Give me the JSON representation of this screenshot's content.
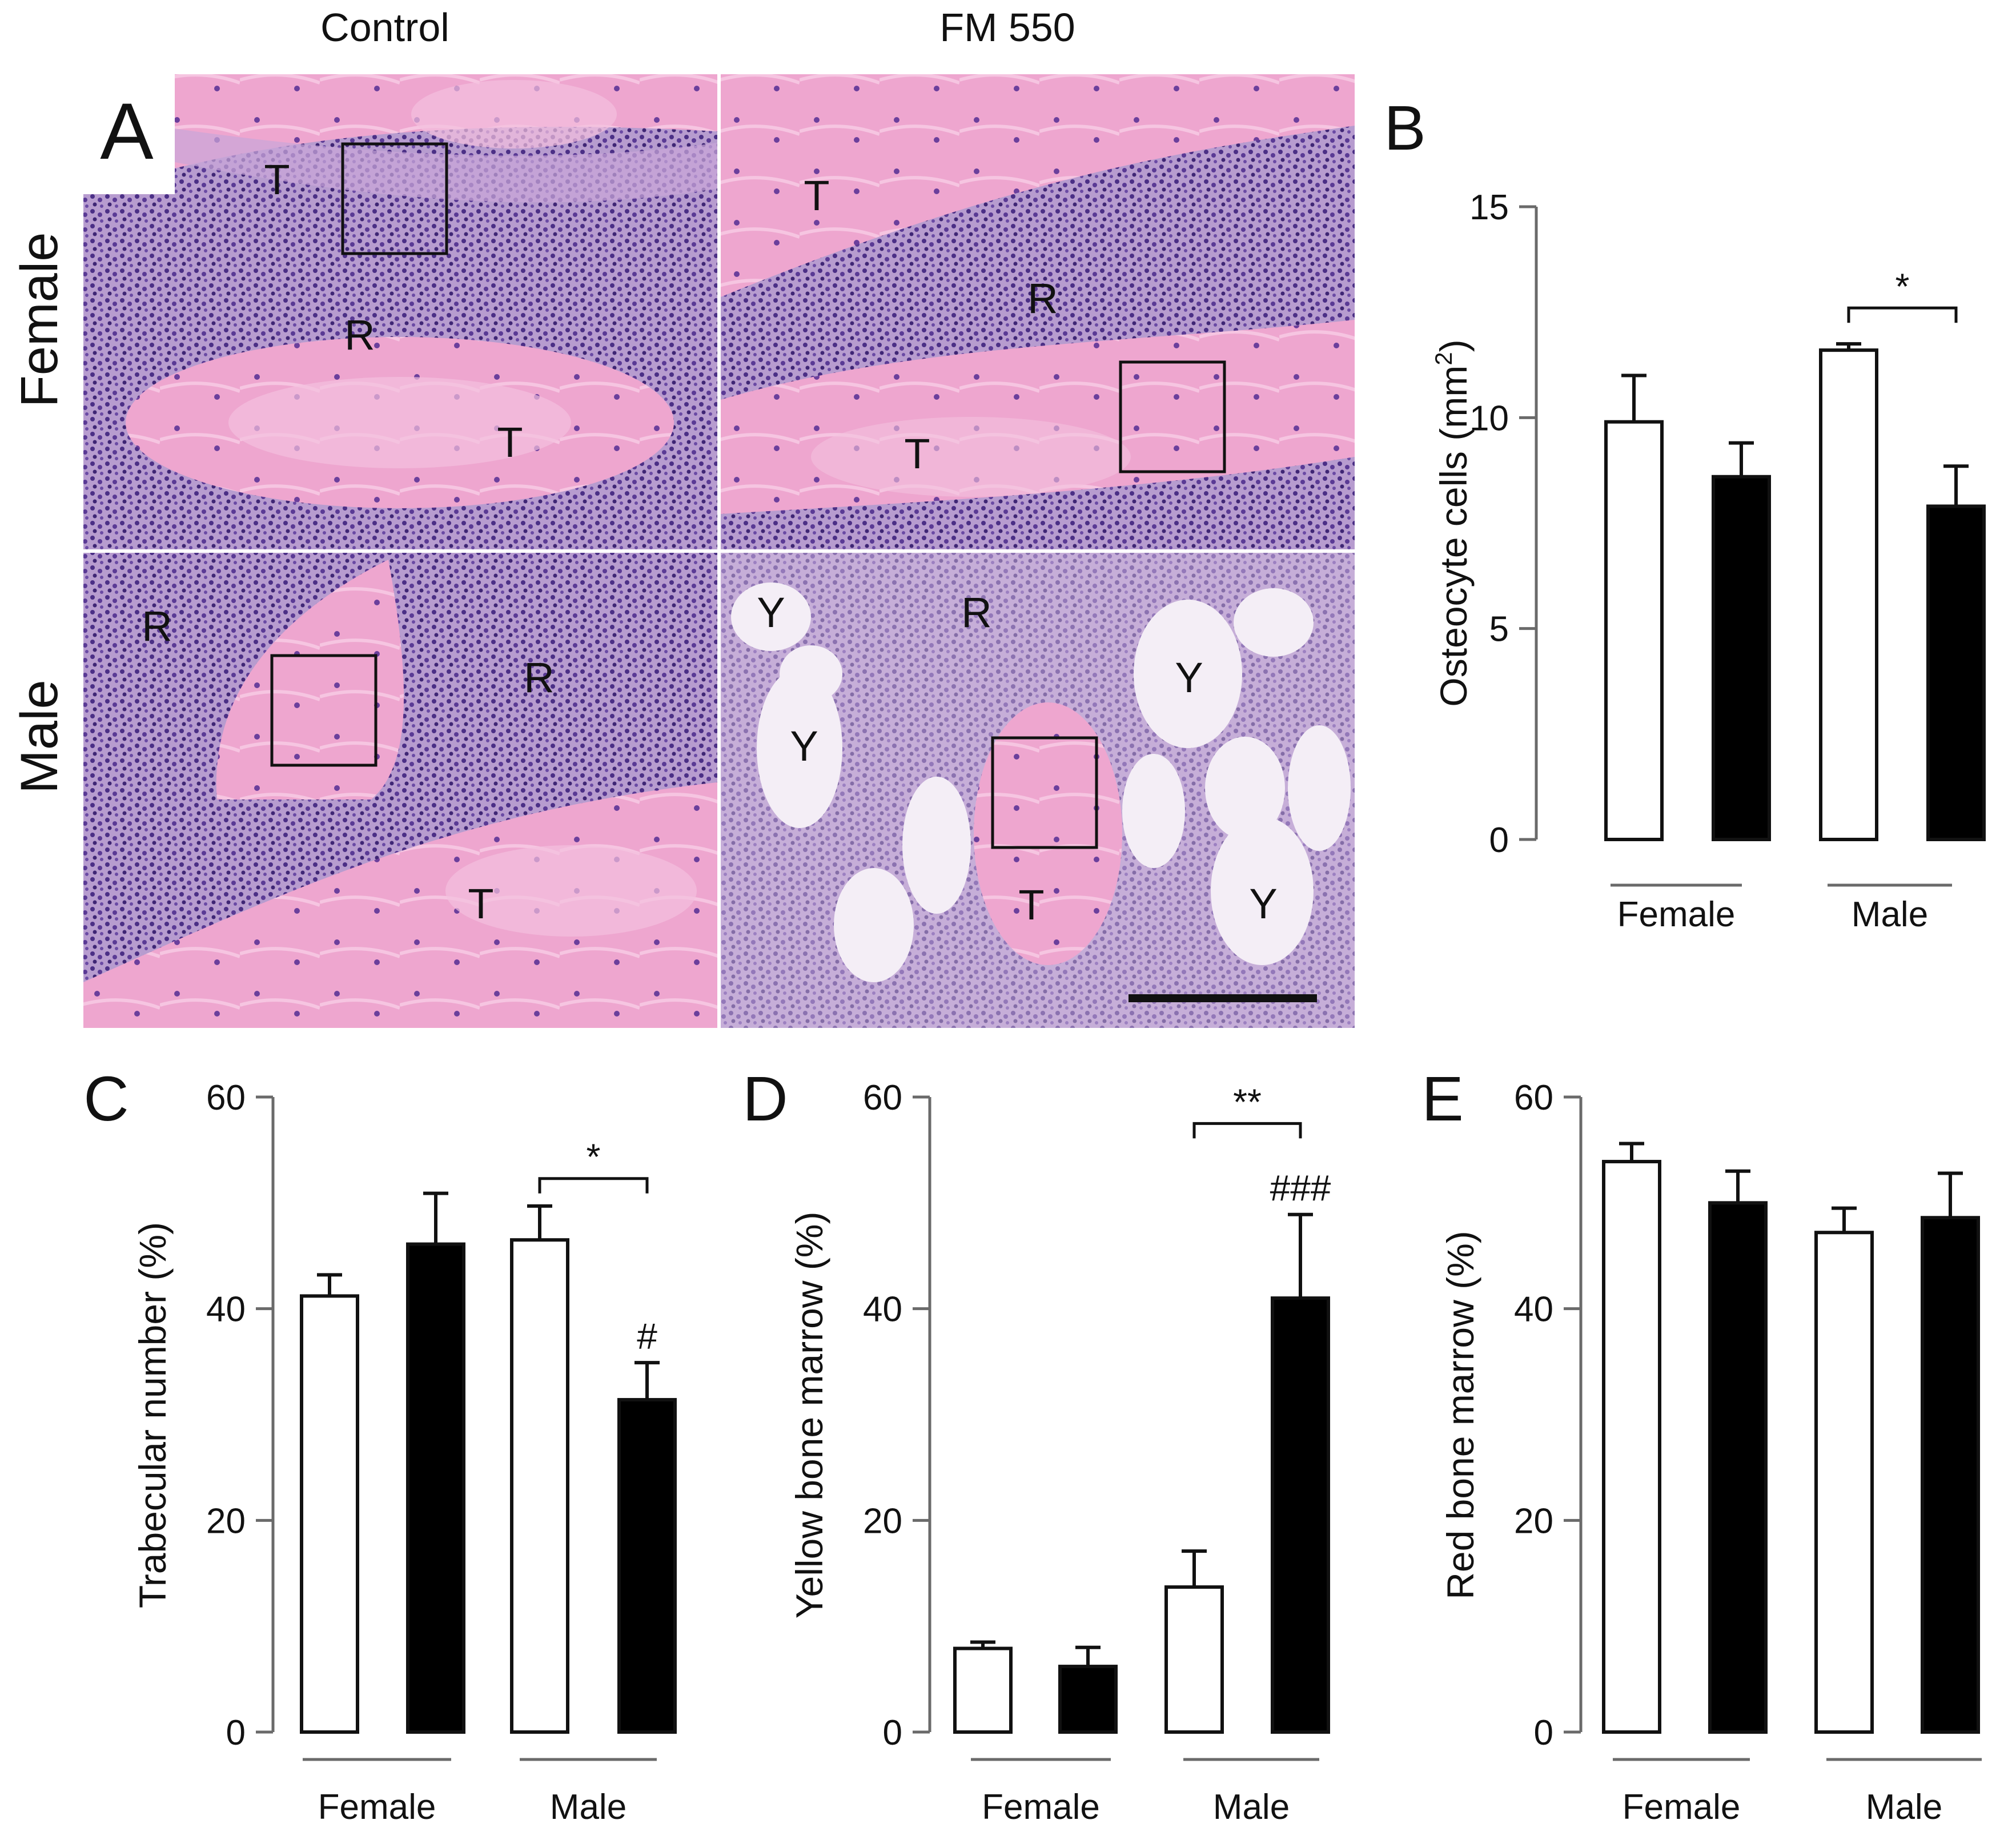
{
  "micrograph": {
    "panel_letter": "A",
    "column_labels": [
      "Control",
      "FM 550"
    ],
    "row_labels": [
      "Female",
      "Male"
    ],
    "tissue_marks": {
      "female_control": [
        "T",
        "R",
        "T"
      ],
      "female_fm550": [
        "T",
        "R",
        "T"
      ],
      "male_control": [
        "R",
        "R",
        "T"
      ],
      "male_fm550": [
        "Y",
        "R",
        "Y",
        "Y",
        "T",
        "Y"
      ]
    },
    "colors": {
      "bone_pink": "#e8a0c8",
      "marrow_purple": "#7a5aa8",
      "fat_white": "#f4eef6"
    }
  },
  "chart_data": [
    {
      "panel": "B",
      "type": "bar",
      "ylabel": "Osteocyte cells (mm",
      "ylabel_sup": "2",
      "ylabel_close": ")",
      "ylim": [
        0,
        15
      ],
      "yticks": [
        "0",
        "5",
        "10",
        "15"
      ],
      "groups": [
        "Female",
        "Male"
      ],
      "series": [
        {
          "values": [
            9.9,
            11.6
          ],
          "errors": [
            1.1,
            0.15
          ],
          "fill": "#ffffff"
        },
        {
          "values": [
            8.6,
            7.9
          ],
          "errors": [
            0.8,
            0.95
          ],
          "fill": "#000000"
        }
      ],
      "brackets": [
        {
          "group": 1,
          "label": "*",
          "y": 12.6
        }
      ],
      "bar_marks": []
    },
    {
      "panel": "C",
      "type": "bar",
      "ylabel": "Trabecular number (%)",
      "ylim": [
        0,
        60
      ],
      "yticks": [
        "0",
        "20",
        "40",
        "60"
      ],
      "groups": [
        "Female",
        "Male"
      ],
      "series": [
        {
          "values": [
            41.2,
            46.5
          ],
          "errors": [
            2.0,
            3.2
          ],
          "fill": "#ffffff"
        },
        {
          "values": [
            46.1,
            31.4
          ],
          "errors": [
            4.8,
            3.5
          ],
          "fill": "#000000"
        }
      ],
      "brackets": [
        {
          "group": 1,
          "label": "*",
          "y": 52.3
        }
      ],
      "bar_marks": [
        {
          "group": 1,
          "series": 1,
          "label": "#"
        }
      ]
    },
    {
      "panel": "D",
      "type": "bar",
      "ylabel": "Yellow bone marrow (%)",
      "ylim": [
        0,
        60
      ],
      "yticks": [
        "0",
        "20",
        "40",
        "60"
      ],
      "groups": [
        "Female",
        "Male"
      ],
      "series": [
        {
          "values": [
            7.9,
            13.7
          ],
          "errors": [
            0.6,
            3.4
          ],
          "fill": "#ffffff"
        },
        {
          "values": [
            6.2,
            41.0
          ],
          "errors": [
            1.8,
            7.9
          ],
          "fill": "#000000"
        }
      ],
      "brackets": [
        {
          "group": 1,
          "label": "**",
          "y": 57.5
        }
      ],
      "bar_marks": [
        {
          "group": 1,
          "series": 1,
          "label": "###"
        }
      ]
    },
    {
      "panel": "E",
      "type": "bar",
      "ylabel": "Red bone marrow (%)",
      "ylim": [
        0,
        60
      ],
      "yticks": [
        "0",
        "20",
        "40",
        "60"
      ],
      "groups": [
        "Female",
        "Male"
      ],
      "series": [
        {
          "values": [
            53.9,
            47.2
          ],
          "errors": [
            1.7,
            2.3
          ],
          "fill": "#ffffff"
        },
        {
          "values": [
            50.0,
            48.6
          ],
          "errors": [
            3.0,
            4.2
          ],
          "fill": "#000000"
        }
      ],
      "brackets": [],
      "bar_marks": []
    }
  ]
}
